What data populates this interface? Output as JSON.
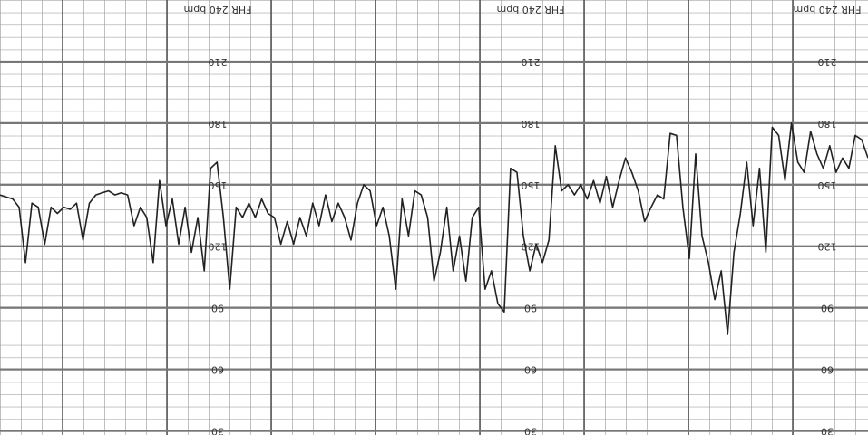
{
  "chart_data": {
    "type": "line",
    "label": "FHR 240 bpm",
    "ylim": [
      28,
      240
    ],
    "yticks": [
      30,
      60,
      90,
      120,
      150,
      180,
      210
    ],
    "grid": true,
    "series": [
      {
        "color": "#222",
        "values": [
          145,
          144,
          143,
          139,
          112,
          141,
          139,
          121,
          139,
          136,
          139,
          138,
          141,
          123,
          141,
          145,
          146,
          147,
          145,
          146,
          145,
          130,
          139,
          134,
          112,
          152,
          130,
          143,
          121,
          139,
          117,
          134,
          108,
          158,
          161,
          134,
          99,
          139,
          134,
          141,
          134,
          143,
          136,
          134,
          121,
          132,
          121,
          134,
          125,
          141,
          130,
          145,
          132,
          141,
          134,
          123,
          141,
          150,
          147,
          130,
          139,
          125,
          99,
          143,
          125,
          147,
          145,
          134,
          103,
          117,
          139,
          108,
          125,
          103,
          134,
          139,
          99,
          108,
          92,
          88,
          158,
          156,
          125,
          108,
          121,
          112,
          123,
          169,
          147,
          150,
          145,
          150,
          143,
          152,
          141,
          154,
          139,
          152,
          163,
          156,
          147,
          132,
          139,
          145,
          143,
          175,
          174,
          139,
          114,
          165,
          125,
          112,
          94,
          108,
          77,
          117,
          136,
          161,
          130,
          158,
          117,
          178,
          174,
          152,
          180,
          161,
          156,
          176,
          165,
          158,
          169,
          156,
          163,
          158,
          174,
          172,
          163
        ]
      }
    ]
  }
}
